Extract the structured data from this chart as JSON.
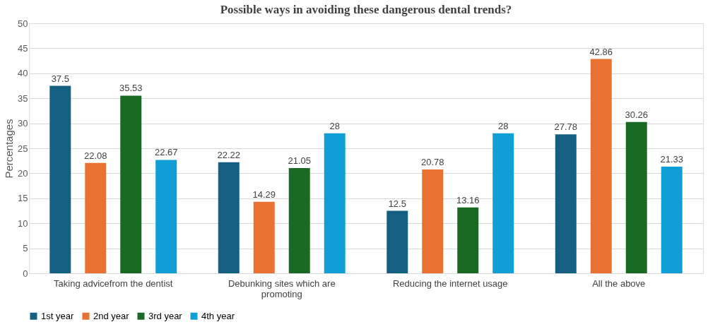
{
  "chart_data": {
    "type": "bar",
    "title": "Possible ways in avoiding these dangerous dental trends?",
    "ylabel": "Percentages",
    "categories": [
      "Taking advicefrom the dentist",
      "Debunking sites which are promoting",
      "Reducing the internet usage",
      "All the above"
    ],
    "series": [
      {
        "name": "1st year",
        "color": "#156082",
        "values": [
          37.5,
          22.22,
          12.5,
          27.78
        ]
      },
      {
        "name": "2nd year",
        "color": "#e97132",
        "values": [
          22.08,
          14.29,
          20.78,
          42.86
        ]
      },
      {
        "name": "3rd year",
        "color": "#196b24",
        "values": [
          35.53,
          21.05,
          13.16,
          30.26
        ]
      },
      {
        "name": "4th year",
        "color": "#0f9ed5",
        "values": [
          22.67,
          28,
          28,
          21.33
        ]
      }
    ],
    "ylim": [
      0,
      50
    ],
    "yticks": [
      0,
      5,
      10,
      15,
      20,
      25,
      30,
      35,
      40,
      45,
      50
    ],
    "grid": "y",
    "legend": "bottom",
    "data_labels": true
  }
}
